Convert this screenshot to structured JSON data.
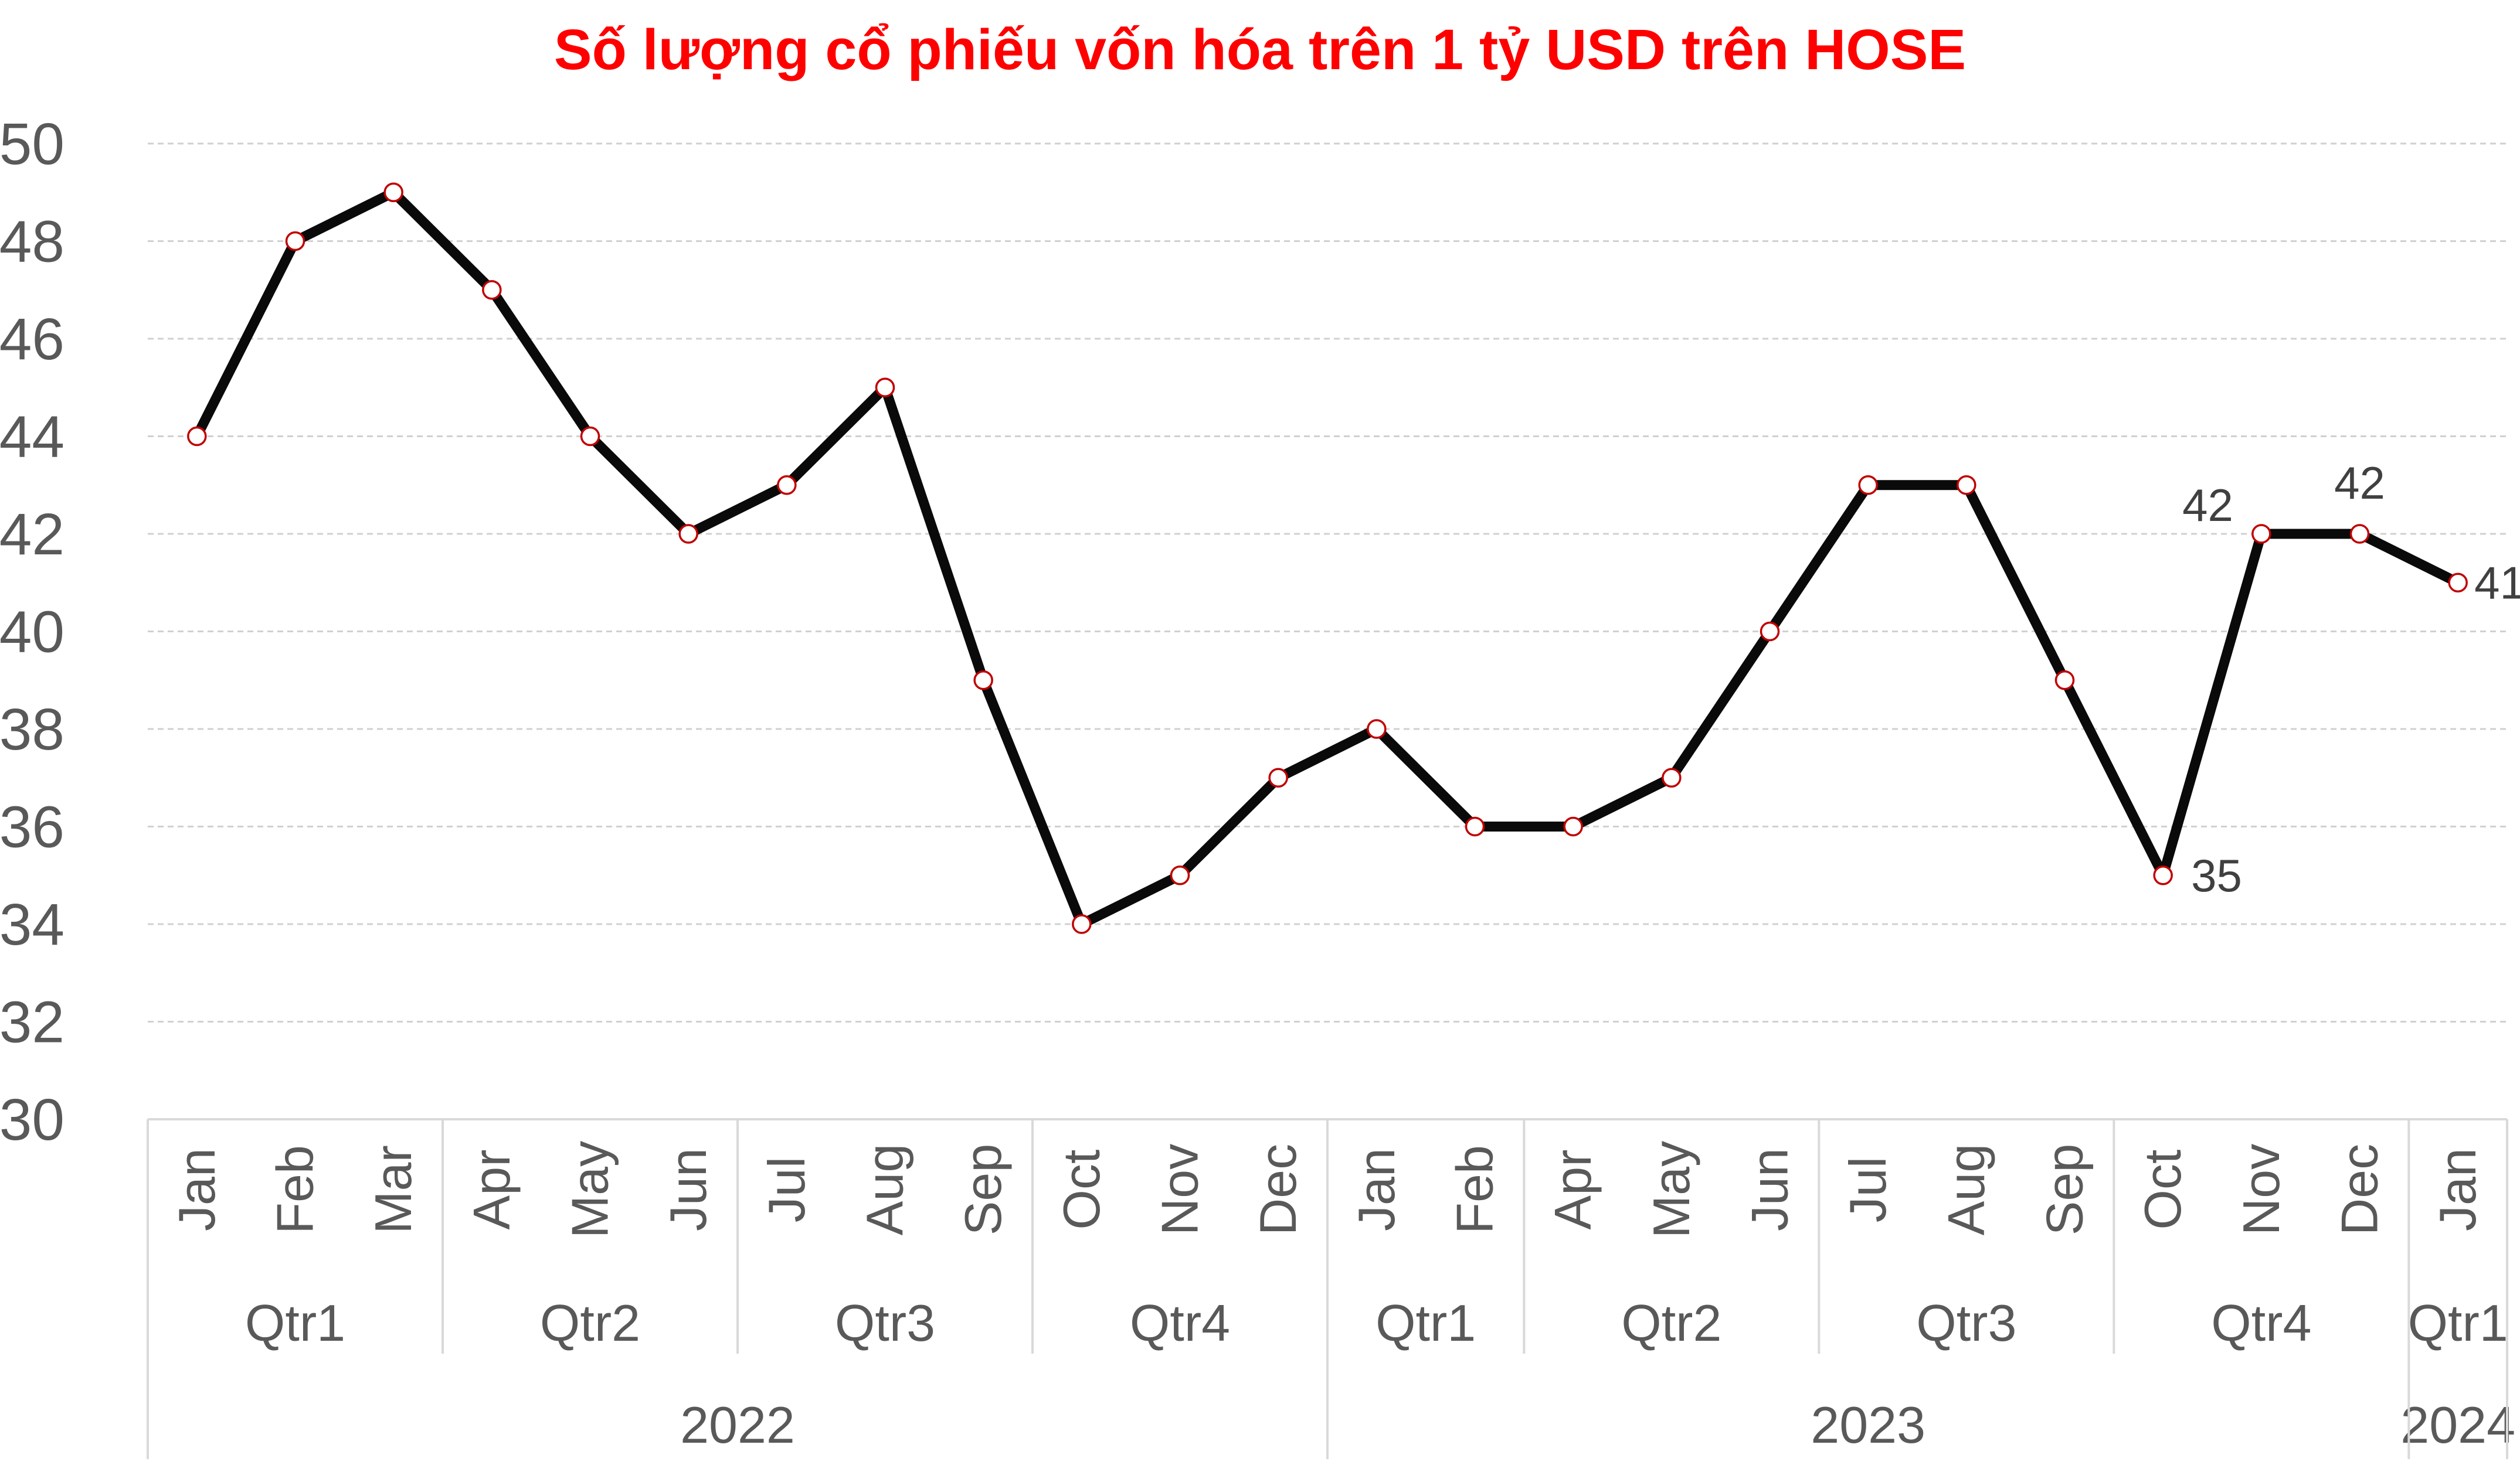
{
  "chart_data": {
    "type": "line",
    "title": "Số lượng cổ phiếu vốn hóa trên 1 tỷ USD trên HOSE",
    "xlabel": "",
    "ylabel": "",
    "ylim": [
      30,
      50
    ],
    "yticks": [
      "30",
      "32",
      "34",
      "36",
      "38",
      "40",
      "42",
      "44",
      "46",
      "48",
      "50"
    ],
    "grid": true,
    "legend": "none",
    "categories": [
      "Jan",
      "Feb",
      "Mar",
      "Apr",
      "May",
      "Jun",
      "Jul",
      "Aug",
      "Sep",
      "Oct",
      "Nov",
      "Dec",
      "Jan",
      "Feb",
      "Apr",
      "May",
      "Jun",
      "Jul",
      "Aug",
      "Sep",
      "Oct",
      "Nov",
      "Dec",
      "Jan"
    ],
    "quarters": [
      {
        "label": "Qtr1",
        "count": 3
      },
      {
        "label": "Qtr2",
        "count": 3
      },
      {
        "label": "Qtr3",
        "count": 3
      },
      {
        "label": "Qtr4",
        "count": 3
      },
      {
        "label": "Qtr1",
        "count": 2
      },
      {
        "label": "Qtr2",
        "count": 3
      },
      {
        "label": "Qtr3",
        "count": 3
      },
      {
        "label": "Qtr4",
        "count": 3
      },
      {
        "label": "Qtr1",
        "count": 1
      }
    ],
    "years": [
      {
        "label": "2022",
        "count": 12
      },
      {
        "label": "2023",
        "count": 11
      },
      {
        "label": "2024",
        "count": 1
      }
    ],
    "series": [
      {
        "values": [
          44,
          48,
          49,
          47,
          44,
          42,
          43,
          45,
          39,
          34,
          35,
          37,
          38,
          36,
          36,
          37,
          40,
          43,
          43,
          39,
          35,
          42,
          42,
          41
        ]
      }
    ],
    "data_labels": [
      {
        "index": 20,
        "text": "35"
      },
      {
        "index": 21,
        "text": "42"
      },
      {
        "index": 22,
        "text": "42"
      },
      {
        "index": 23,
        "text": "41"
      }
    ],
    "colors": {
      "title": "#ff0000",
      "line": "#0a0a0a",
      "marker_fill": "#ffffff",
      "marker_stroke": "#c00000",
      "tick_text": "#595959",
      "grid": "#d0d0d0"
    }
  }
}
